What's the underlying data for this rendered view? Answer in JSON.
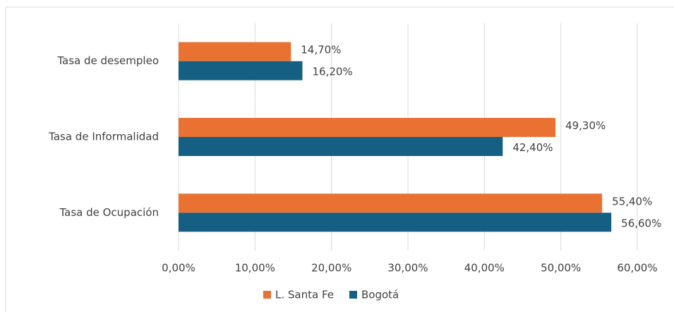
{
  "chart_data": {
    "type": "bar",
    "orientation": "horizontal",
    "categories": [
      "Tasa de desempleo",
      "Tasa de Informalidad",
      "Tasa de Ocupación"
    ],
    "series": [
      {
        "name": "L. Santa Fe",
        "color": "#E97132",
        "values": [
          14.7,
          49.3,
          55.4
        ],
        "value_labels": [
          "14,70%",
          "49,30%",
          "55,40%"
        ]
      },
      {
        "name": "Bogotá",
        "color": "#156082",
        "values": [
          16.2,
          42.4,
          56.6
        ],
        "value_labels": [
          "16,20%",
          "42,40%",
          "56,60%"
        ]
      }
    ],
    "xlim": [
      0,
      60
    ],
    "xticks": [
      {
        "value": 0,
        "label": "0,00%"
      },
      {
        "value": 10,
        "label": "10,00%"
      },
      {
        "value": 20,
        "label": "20,00%"
      },
      {
        "value": 30,
        "label": "30,00%"
      },
      {
        "value": 40,
        "label": "40,00%"
      },
      {
        "value": 50,
        "label": "50,00%"
      },
      {
        "value": 60,
        "label": "60,00%"
      }
    ],
    "grid": true,
    "legend": "bottom"
  }
}
